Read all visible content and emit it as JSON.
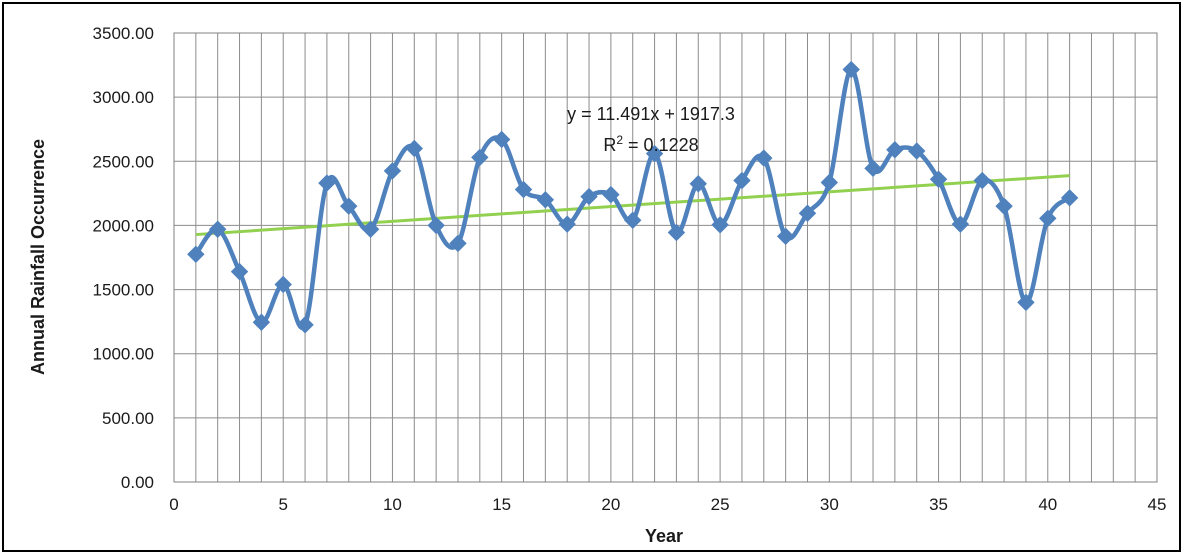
{
  "chart_data": {
    "type": "line",
    "title": "",
    "xlabel": "Year",
    "ylabel": "Annual Rainfall Occurrence",
    "xlim": [
      0,
      45
    ],
    "ylim": [
      0,
      3500
    ],
    "x_ticks": [
      "0",
      "5",
      "10",
      "15",
      "20",
      "25",
      "30",
      "35",
      "40",
      "45"
    ],
    "y_ticks": [
      "0.00",
      "500.00",
      "1000.00",
      "1500.00",
      "2000.00",
      "2500.00",
      "3000.00",
      "3500.00"
    ],
    "grid": true,
    "smooth": true,
    "series": [
      {
        "color": "#4F81BD",
        "marker": "diamond",
        "x": [
          1,
          2,
          3,
          4,
          5,
          6,
          7,
          8,
          9,
          10,
          11,
          12,
          13,
          14,
          15,
          16,
          17,
          18,
          19,
          20,
          21,
          22,
          23,
          24,
          25,
          26,
          27,
          28,
          29,
          30,
          31,
          32,
          33,
          34,
          35,
          36,
          37,
          38,
          39,
          40,
          41
        ],
        "y": [
          1775,
          1970,
          1640,
          1245,
          1540,
          1225,
          2330,
          2150,
          1970,
          2425,
          2600,
          2000,
          1860,
          2530,
          2670,
          2280,
          2200,
          2010,
          2225,
          2240,
          2040,
          2560,
          1945,
          2325,
          2005,
          2350,
          2525,
          1915,
          2095,
          2335,
          3215,
          2445,
          2590,
          2580,
          2360,
          2010,
          2350,
          2150,
          1400,
          2055,
          2215
        ]
      }
    ],
    "trendline": {
      "color": "#92D050",
      "slope": 11.491,
      "intercept": 1917.3,
      "x_range": [
        1,
        41
      ],
      "equation": "y = 11.491x + 1917.3",
      "r2_prefix": "R",
      "r2_sup": "2",
      "r2_suffix": " = 0.1228"
    }
  }
}
